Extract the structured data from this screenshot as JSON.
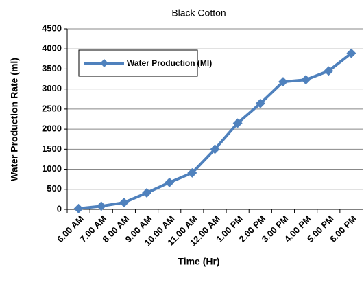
{
  "chart_data": {
    "type": "line",
    "title": "Black Cotton",
    "x_label": "Time (Hr)",
    "y_label": "Water Production Rate  (ml)",
    "categories": [
      "6.00 AM",
      "7.00 AM",
      "8.00 AM",
      "9.00 AM",
      "10.00 AM",
      "11.00 AM",
      "12.00 AM",
      "1.00 PM",
      "2.00 PM",
      "3.00 PM",
      "4.00 PM",
      "5.00 PM",
      "6.00 PM"
    ],
    "series": [
      {
        "name": "Water Production (Ml)",
        "color": "#4f81bd",
        "values": [
          20,
          80,
          170,
          410,
          670,
          910,
          1500,
          2150,
          2640,
          3180,
          3230,
          3450,
          3890
        ]
      }
    ],
    "ylim": [
      0,
      4500
    ],
    "yticks": [
      0,
      500,
      1000,
      1500,
      2000,
      2500,
      3000,
      3500,
      4000,
      4500
    ],
    "grid": true,
    "legend": "upper left"
  }
}
